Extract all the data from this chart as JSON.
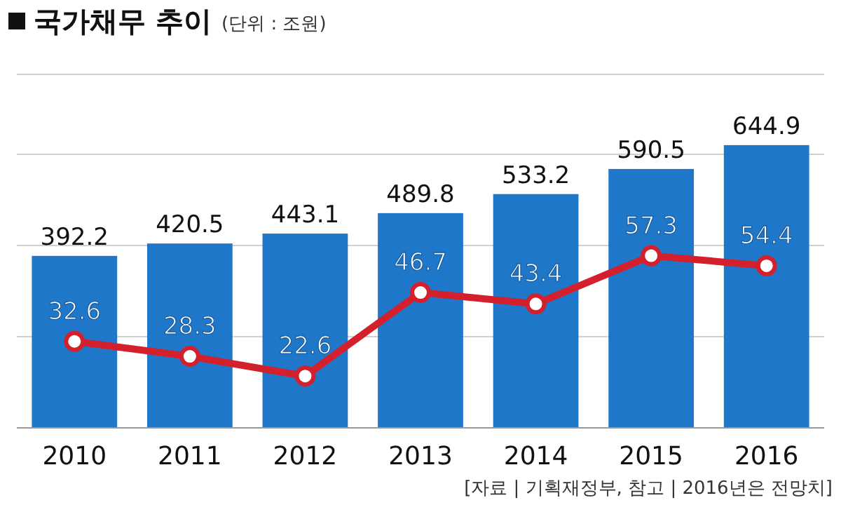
{
  "chart_data": {
    "type": "bar",
    "title": "국가채무 추이",
    "subtitle": "(단위 : 조원)",
    "categories": [
      "2010",
      "2011",
      "2012",
      "2013",
      "2014",
      "2015",
      "2016"
    ],
    "series": [
      {
        "color": "#1f77c9",
        "values": [
          392.2,
          420.5,
          443.1,
          489.8,
          533.2,
          590.5,
          644.9
        ]
      },
      {
        "type": "line",
        "axis": "y2",
        "color": "#d4202c",
        "values": [
          32.6,
          28.3,
          22.6,
          46.7,
          43.4,
          57.3,
          54.4
        ]
      }
    ],
    "data_labels": true,
    "grid": "y",
    "marker": "circle",
    "line_style": "solid",
    "annotations": [
      "[자료 | 기획재정부, 참고 | 2016년은 전망치]"
    ]
  }
}
